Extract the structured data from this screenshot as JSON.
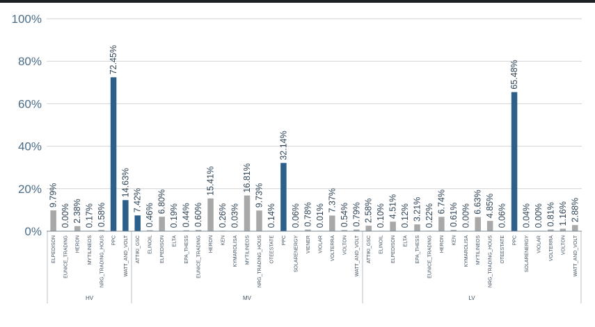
{
  "chart_data": {
    "type": "bar",
    "title": "",
    "xlabel": "",
    "ylabel": "",
    "ylim": [
      0,
      100
    ],
    "yticks": [
      "0%",
      "20%",
      "40%",
      "60%",
      "80%",
      "100%"
    ],
    "grid": true,
    "colors": {
      "highlight": "#2d5f8b",
      "normal": "#a8a8a8",
      "grid": "#d2d2d2",
      "axis": "#7a8a96"
    },
    "groups": [
      {
        "name": "HV",
        "bars": [
          {
            "label": "ELPEDISON",
            "value": 9.79,
            "text": "9.79%",
            "highlight": false
          },
          {
            "label": "EUNICE_TRADING",
            "value": 0.0,
            "text": "0.00%",
            "highlight": false
          },
          {
            "label": "HERON",
            "value": 2.38,
            "text": "2.38%",
            "highlight": false
          },
          {
            "label": "MYTILINEOS",
            "value": 0.17,
            "text": "0.17%",
            "highlight": false
          },
          {
            "label": "NRG_TRADING_HOUS",
            "value": 0.58,
            "text": "0.58%",
            "highlight": false
          },
          {
            "label": "PPC",
            "value": 72.45,
            "text": "72.45%",
            "highlight": true
          },
          {
            "label": "WATT_AND_VOLT",
            "value": 14.63,
            "text": "14.63%",
            "highlight": true
          }
        ]
      },
      {
        "name": "MV",
        "bars": [
          {
            "label": "ATTIKI_GSC",
            "value": 7.42,
            "text": "7.42%",
            "highlight": true
          },
          {
            "label": "ELINOIL",
            "value": 0.46,
            "text": "0.46%",
            "highlight": false
          },
          {
            "label": "ELPEDISON",
            "value": 6.8,
            "text": "6.80%",
            "highlight": false
          },
          {
            "label": "ELTA",
            "value": 0.19,
            "text": "0.19%",
            "highlight": false
          },
          {
            "label": "EPA_THESS",
            "value": 0.44,
            "text": "0.44%",
            "highlight": false
          },
          {
            "label": "EUNICE_TRADING",
            "value": 0.6,
            "text": "0.60%",
            "highlight": false
          },
          {
            "label": "HERON",
            "value": 15.41,
            "text": "15.41%",
            "highlight": false
          },
          {
            "label": "KEN",
            "value": 0.26,
            "text": "0.26%",
            "highlight": false
          },
          {
            "label": "KYMAROLISA",
            "value": 0.03,
            "text": "0.03%",
            "highlight": false
          },
          {
            "label": "MYTILINEOS",
            "value": 16.81,
            "text": "16.81%",
            "highlight": false
          },
          {
            "label": "NRG_TRADING_HOUS",
            "value": 9.73,
            "text": "9.73%",
            "highlight": false
          },
          {
            "label": "OTEESTATE",
            "value": 0.14,
            "text": "0.14%",
            "highlight": false
          },
          {
            "label": "PPC",
            "value": 32.14,
            "text": "32.14%",
            "highlight": true
          },
          {
            "label": "SOLARENERGY",
            "value": 0.06,
            "text": "0.06%",
            "highlight": false
          },
          {
            "label": "VIENER",
            "value": 0.78,
            "text": "0.78%",
            "highlight": false
          },
          {
            "label": "VIOLAR",
            "value": 0.01,
            "text": "0.01%",
            "highlight": false
          },
          {
            "label": "VOLTERRA",
            "value": 7.37,
            "text": "7.37%",
            "highlight": false
          },
          {
            "label": "VOLTON",
            "value": 0.54,
            "text": "0.54%",
            "highlight": false
          },
          {
            "label": "WATT_AND_VOLT",
            "value": 0.79,
            "text": "0.79%",
            "highlight": false
          }
        ]
      },
      {
        "name": "LV",
        "bars": [
          {
            "label": "ATTIKI_GSC",
            "value": 2.58,
            "text": "2.58%",
            "highlight": false
          },
          {
            "label": "ELINOIL",
            "value": 0.1,
            "text": "0.10%",
            "highlight": false
          },
          {
            "label": "ELPEDISON",
            "value": 4.51,
            "text": "4.51%",
            "highlight": false
          },
          {
            "label": "ELTA",
            "value": 0.12,
            "text": "0.12%",
            "highlight": false
          },
          {
            "label": "EPA_THESS",
            "value": 3.21,
            "text": "3.21%",
            "highlight": false
          },
          {
            "label": "EUNICE_TRADING",
            "value": 0.22,
            "text": "0.22%",
            "highlight": false
          },
          {
            "label": "HERON",
            "value": 6.74,
            "text": "6.74%",
            "highlight": false
          },
          {
            "label": "KEN",
            "value": 0.61,
            "text": "0.61%",
            "highlight": false
          },
          {
            "label": "KYMAROLISA",
            "value": 0.0,
            "text": "0.00%",
            "highlight": false
          },
          {
            "label": "MYTILINEOS",
            "value": 6.63,
            "text": "6.63%",
            "highlight": false
          },
          {
            "label": "NRG_TRADING_HOUS",
            "value": 4.85,
            "text": "4.85%",
            "highlight": false
          },
          {
            "label": "OTEESTATE",
            "value": 0.06,
            "text": "0.06%",
            "highlight": false
          },
          {
            "label": "PPC",
            "value": 65.48,
            "text": "65.48%",
            "highlight": true
          },
          {
            "label": "SOLARENERGY",
            "value": 0.04,
            "text": "0.04%",
            "highlight": false
          },
          {
            "label": "VIOLAR",
            "value": 0.0,
            "text": "0.00%",
            "highlight": false
          },
          {
            "label": "VOLTERRA",
            "value": 0.81,
            "text": "0.81%",
            "highlight": false
          },
          {
            "label": "VOLTON",
            "value": 1.16,
            "text": "1.16%",
            "highlight": false
          },
          {
            "label": "WATT_AND_VOLT",
            "value": 2.88,
            "text": "2.88%",
            "highlight": false
          }
        ]
      }
    ]
  }
}
